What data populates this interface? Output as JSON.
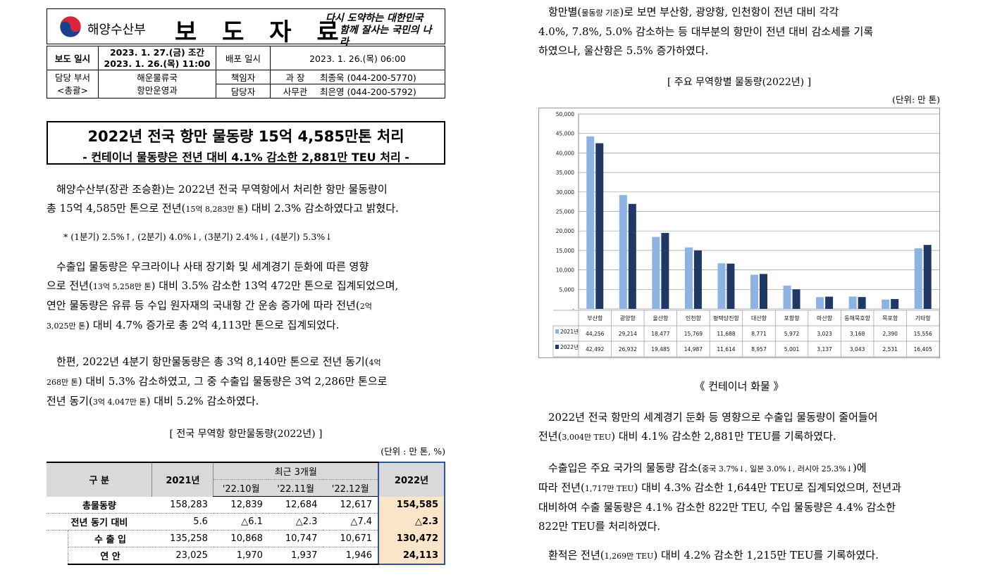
{
  "header": {
    "org_name": "해양수산부",
    "doc_type": "보 도 자 료",
    "slogan_line1": "다시 도약하는 대한민국",
    "slogan_line2": "함께 잘사는 국민의 나라"
  },
  "info": {
    "release_label": "보도 일시",
    "release_1": "2023. 1. 27.(금) 조간",
    "release_2": "2023. 1. 26.(목) 11:00",
    "dist_label": "배포 일시",
    "dist_value": "2023. 1. 26.(목) 06:00",
    "dept_label": "담당 부서",
    "dept_sub": "<총괄>",
    "dept_1": "해운물류국",
    "dept_2": "항만운영과",
    "resp_label": "책임자",
    "resp_title": "과 장",
    "resp_contact": "최종욱 (044-200-5770)",
    "staff_label": "담당자",
    "staff_title": "사무관",
    "staff_contact": "최은영 (044-200-5792)"
  },
  "title": {
    "main": "2022년 전국 항만 물동량 15억 4,585만톤 처리",
    "sub": "- 컨테이너 물동량은 전년 대비 4.1% 감소한 2,881만 TEU 처리 -"
  },
  "left": {
    "p1_a": "해양수산부(장관 조승환)는 2022년 전국 무역항에서 처리한 항만 물동량이",
    "p1_b": "총 15억 4,585만 톤으로 전년(",
    "p1_b_small": "15억 8,283만 톤",
    "p1_b_end": ") 대비 2.3% 감소하였다고 밝혔다.",
    "note": "* (1분기) 2.5%↑, (2분기) 4.0%↓, (3분기) 2.4%↓, (4분기) 5.3%↓",
    "p2_a": "수출입 물동량은 우크라이나 사태 장기화 및 세계경기 둔화에 따른 영향",
    "p2_b": "으로 전년(",
    "p2_b_small": "13억 5,258만 톤",
    "p2_b_end": ") 대비 3.5% 감소한 13억 472만 톤으로 집계되었으며,",
    "p2_c": "연안 물동량은 유류 등 수입 원자재의 국내항 간 운송 증가에 따라 전년(",
    "p2_c_small": "2억",
    "p2_d_small": "3,025만 톤",
    "p2_d_end": ") 대비 4.7% 증가로 총 2억 4,113만 톤으로 집계되었다.",
    "p3_a": "한편, 2022년 4분기 항만물동량은 총 3억 8,140만 톤으로 전년 동기(",
    "p3_a_small": "4억",
    "p3_b_small": "268만 톤",
    "p3_b_end": ") 대비 5.3% 감소하였고, 그 중 수출입 물동량은 3억 2,286만 톤으로",
    "p3_c": "전년 동기(",
    "p3_c_small": "3억 4,047만 톤",
    "p3_c_end": ") 대비 5.2% 감소하였다.",
    "table_caption": "[ 전국 무역항 항만물동량(2022년) ]",
    "table_unit": "(단위 : 만 톤, %)"
  },
  "table": {
    "h_category": "구 분",
    "h_2021": "2021년",
    "h_recent": "최근 3개월",
    "h_oct": "'22.10월",
    "h_nov": "'22.11월",
    "h_dec": "'22.12월",
    "h_2022": "2022년",
    "rows": [
      {
        "label": "총물동량",
        "y2021": "158,283",
        "oct": "12,839",
        "nov": "12,684",
        "dec": "12,617",
        "y2022": "154,585"
      },
      {
        "label": "전년 동기 대비",
        "y2021": "5.6",
        "oct": "△6.1",
        "nov": "△2.3",
        "dec": "△7.4",
        "y2022": "△2.3"
      },
      {
        "label": "수 출 입",
        "y2021": "135,258",
        "oct": "10,868",
        "nov": "10,747",
        "dec": "10,671",
        "y2022": "130,472"
      },
      {
        "label": "연 안",
        "y2021": "23,025",
        "oct": "1,970",
        "nov": "1,937",
        "dec": "1,946",
        "y2022": "24,113"
      }
    ]
  },
  "right": {
    "p1_a": "항만별(",
    "p1_a_small": "물동량 기준",
    "p1_a_end": ")로 보면 부산항, 광양항, 인천항이 전년 대비 각각",
    "p1_b": "4.0%, 7.8%, 5.0% 감소하는 등 대부분의 항만이 전년 대비 감소세를 기록",
    "p1_c": "하였으나, 울산항은 5.5% 증가하였다.",
    "chart_caption": "[ 주요 무역항별 물동량(2022년) ]",
    "chart_unit": "(단위: 만 톤)",
    "container_heading": "《 컨테이너 화물 》",
    "c1_a": "2022년 전국 항만의 세계경기 둔화 등 영향으로 수출입 물동량이 줄어들어",
    "c1_b": "전년(",
    "c1_b_small": "3,004만 TEU",
    "c1_b_end": ") 대비 4.1% 감소한 2,881만 TEU를 기록하였다.",
    "c2_a": "수출입은 주요 국가의 물동량 감소(",
    "c2_a_small": "중국 3.7%↓, 일본 3.0%↓, 러시아 25.3%↓",
    "c2_a_end": ")에",
    "c2_b": "따라 전년(",
    "c2_b_small": "1,717만 TEU",
    "c2_b_end": ") 대비 4.3% 감소한 1,644만 TEU로 집계되었으며, 전년과",
    "c2_c": "대비하여 수출 물동량은 4.1% 감소한 822만 TEU, 수입 물동량은 4.4% 감소한",
    "c2_d": "822만 TEU를 처리하였다.",
    "c3_a": "환적은 전년(",
    "c3_a_small": "1,269만 TEU",
    "c3_a_end": ") 대비 4.2% 감소한 1,215만 TEU를 기록하였다."
  },
  "chart_data": {
    "type": "bar",
    "categories": [
      "부산항",
      "광양항",
      "울산항",
      "인천항",
      "평택당진항",
      "대산항",
      "포항항",
      "마산항",
      "동해묵호항",
      "목포항",
      "기타항"
    ],
    "series": [
      {
        "name": "2021년",
        "values": [
          44256,
          29214,
          18477,
          15769,
          11688,
          8771,
          5972,
          3023,
          3168,
          2390,
          15556
        ],
        "labels": [
          "44,256",
          "29,214",
          "18,477",
          "15,769",
          "11,688",
          "8,771",
          "5,972",
          "3,023",
          "3,168",
          "2,390",
          "15,556"
        ],
        "color": "#8db3e2"
      },
      {
        "name": "2022년",
        "values": [
          42492,
          26932,
          19485,
          14987,
          11614,
          8957,
          5001,
          3137,
          3043,
          2531,
          16405
        ],
        "labels": [
          "42,492",
          "26,932",
          "19,485",
          "14,987",
          "11,614",
          "8,957",
          "5,001",
          "3,137",
          "3,043",
          "2,531",
          "16,405"
        ],
        "color": "#1f3864"
      }
    ],
    "ylim": [
      0,
      50000
    ],
    "yticks": [
      "-",
      "5,000",
      "10,000",
      "15,000",
      "20,000",
      "25,000",
      "30,000",
      "35,000",
      "40,000",
      "45,000",
      "50,000"
    ],
    "grid": true
  }
}
